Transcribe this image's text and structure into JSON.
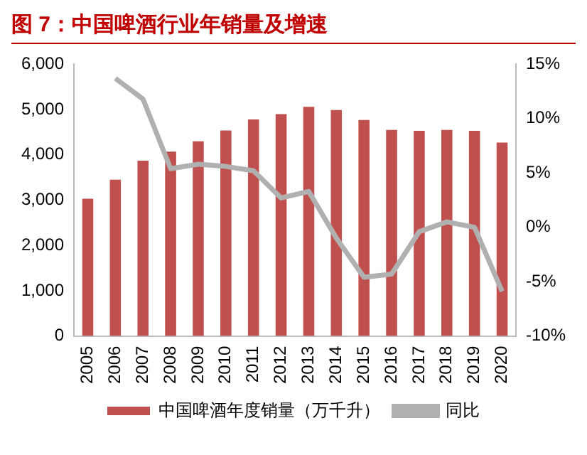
{
  "chart_data": {
    "type": "bar",
    "title": "图 7：中国啤酒行业年销量及增速",
    "categories": [
      "2005",
      "2006",
      "2007",
      "2008",
      "2009",
      "2010",
      "2011",
      "2012",
      "2013",
      "2014",
      "2015",
      "2016",
      "2017",
      "2018",
      "2019",
      "2020"
    ],
    "series": [
      {
        "name": "中国啤酒年度销量（万千升）",
        "color": "#c0504d",
        "values": [
          3030,
          3450,
          3870,
          4070,
          4300,
          4540,
          4780,
          4900,
          5060,
          4990,
          4770,
          4550,
          4530,
          4550,
          4530,
          4270
        ]
      },
      {
        "name": "同比",
        "type": "line",
        "axis": "y2",
        "color": "#b0b0b0",
        "values": [
          null,
          13.7,
          11.8,
          5.4,
          5.8,
          5.6,
          5.2,
          2.7,
          3.3,
          -1.0,
          -4.6,
          -4.3,
          -0.4,
          0.5,
          0.0,
          -5.9
        ]
      }
    ],
    "ylim": [
      0,
      6000
    ],
    "yticks": [
      {
        "value": 0,
        "label": "0"
      },
      {
        "value": 1000,
        "label": "1,000"
      },
      {
        "value": 2000,
        "label": "2,000"
      },
      {
        "value": 3000,
        "label": "3,000"
      },
      {
        "value": 4000,
        "label": "4,000"
      },
      {
        "value": 5000,
        "label": "5,000"
      },
      {
        "value": 6000,
        "label": "6,000"
      }
    ],
    "y2lim": [
      -10,
      15
    ],
    "y2ticks": [
      {
        "value": -10,
        "label": "-10%"
      },
      {
        "value": -5,
        "label": "-5%"
      },
      {
        "value": 0,
        "label": "0%"
      },
      {
        "value": 5,
        "label": "5%"
      },
      {
        "value": 10,
        "label": "10%"
      },
      {
        "value": 15,
        "label": "15%"
      }
    ],
    "legend": "bottom",
    "grid": false
  }
}
